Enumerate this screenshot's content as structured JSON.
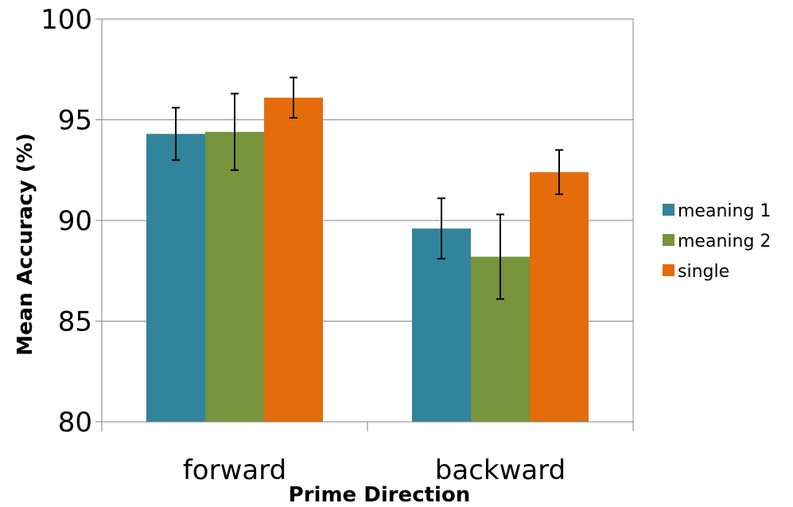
{
  "chart_data": {
    "type": "bar",
    "categories": [
      "forward",
      "backward"
    ],
    "series": [
      {
        "name": "meaning 1",
        "color": "#31849b",
        "values": [
          94.3,
          89.6
        ],
        "errors": [
          1.3,
          1.5
        ]
      },
      {
        "name": "meaning 2",
        "color": "#77933c",
        "values": [
          94.4,
          88.2
        ],
        "errors": [
          1.9,
          2.1
        ]
      },
      {
        "name": "single",
        "color": "#e46c0a",
        "values": [
          96.1,
          92.4
        ],
        "errors": [
          1.0,
          1.1
        ]
      }
    ],
    "xlabel": "Prime Direction",
    "ylabel": "Mean Accuracy (%)",
    "ylim": [
      80,
      100
    ],
    "yticks": [
      80,
      85,
      90,
      95,
      100
    ],
    "grid": true,
    "legend": "right"
  }
}
